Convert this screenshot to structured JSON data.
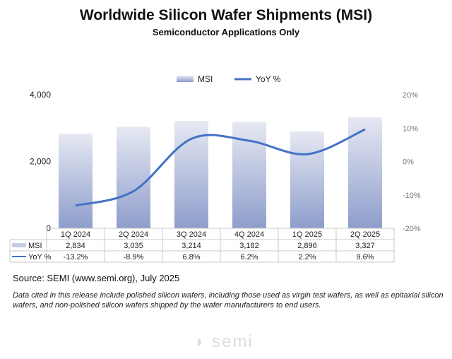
{
  "chart_data": {
    "type": "bar+line",
    "title": "Worldwide Silicon Wafer Shipments (MSI)",
    "subtitle": "Semiconductor Applications Only",
    "categories": [
      "1Q 2024",
      "2Q 2024",
      "3Q 2024",
      "4Q 2024",
      "1Q 2025",
      "2Q 2025"
    ],
    "series": [
      {
        "name": "MSI",
        "type": "bar",
        "axis": "left",
        "values": [
          2834,
          3035,
          3214,
          3182,
          2896,
          3327
        ],
        "labels": [
          "2,834",
          "3,035",
          "3,214",
          "3,182",
          "2,896",
          "3,327"
        ],
        "color": "#9aa8d2"
      },
      {
        "name": "YoY %",
        "type": "line",
        "axis": "right",
        "values": [
          -13.2,
          -8.9,
          6.8,
          6.2,
          2.2,
          9.6
        ],
        "labels": [
          "-13.2%",
          "-8.9%",
          "6.8%",
          "6.2%",
          "2.2%",
          "9.6%"
        ],
        "color": "#4472c4"
      }
    ],
    "left_axis": {
      "range": [
        0,
        4000
      ],
      "ticks": [
        "0",
        "2,000",
        "4,000"
      ]
    },
    "right_axis": {
      "range": [
        -20,
        20
      ],
      "ticks": [
        "-20%",
        "-10%",
        "0%",
        "10%",
        "20%"
      ]
    },
    "legend": "top",
    "grid": false,
    "data_table": true
  },
  "source": "Source: SEMI (www.semi.org), July 2025",
  "note": "Data cited in this release include polished silicon wafers, including those used as virgin test wafers, as well as epitaxial silicon wafers, and non-polished silicon wafers shipped by the wafer manufacturers to end users.",
  "logo": "semi"
}
